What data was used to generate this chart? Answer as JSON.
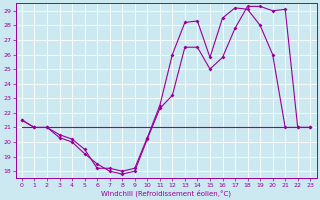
{
  "xlabel": "Windchill (Refroidissement éolien,°C)",
  "xlim": [
    -0.5,
    23.5
  ],
  "ylim": [
    17.5,
    29.5
  ],
  "yticks": [
    18,
    19,
    20,
    21,
    22,
    23,
    24,
    25,
    26,
    27,
    28,
    29
  ],
  "xticks": [
    0,
    1,
    2,
    3,
    4,
    5,
    6,
    7,
    8,
    9,
    10,
    11,
    12,
    13,
    14,
    15,
    16,
    17,
    18,
    19,
    20,
    21,
    22,
    23
  ],
  "bg_color": "#cce8f0",
  "line_color": "#990099",
  "hours": [
    0,
    1,
    2,
    3,
    4,
    5,
    6,
    7,
    8,
    9,
    10,
    11,
    12,
    13,
    14,
    15,
    16,
    17,
    18,
    19,
    20,
    21,
    22,
    23
  ],
  "line1": [
    21.5,
    21.0,
    21.0,
    20.5,
    20.2,
    19.5,
    18.2,
    18.2,
    18.0,
    18.2,
    20.3,
    22.5,
    26.0,
    28.2,
    28.3,
    25.8,
    28.5,
    29.2,
    29.1,
    28.0,
    26.0,
    21.0,
    21.0,
    21.0
  ],
  "line2": [
    21.5,
    21.0,
    21.0,
    20.3,
    20.0,
    19.2,
    18.5,
    18.0,
    17.8,
    18.0,
    20.2,
    22.3,
    23.2,
    26.5,
    26.5,
    25.0,
    25.8,
    27.8,
    29.3,
    29.3,
    29.0,
    29.1,
    21.0,
    21.0
  ],
  "line3": [
    21.0,
    21.0,
    21.0,
    21.0,
    21.0,
    21.0,
    21.0,
    21.0,
    21.0,
    21.0,
    21.0,
    21.0,
    21.0,
    21.0,
    21.0,
    21.0,
    21.0,
    21.0,
    21.0,
    21.0,
    21.0,
    21.0,
    21.0,
    21.0
  ]
}
